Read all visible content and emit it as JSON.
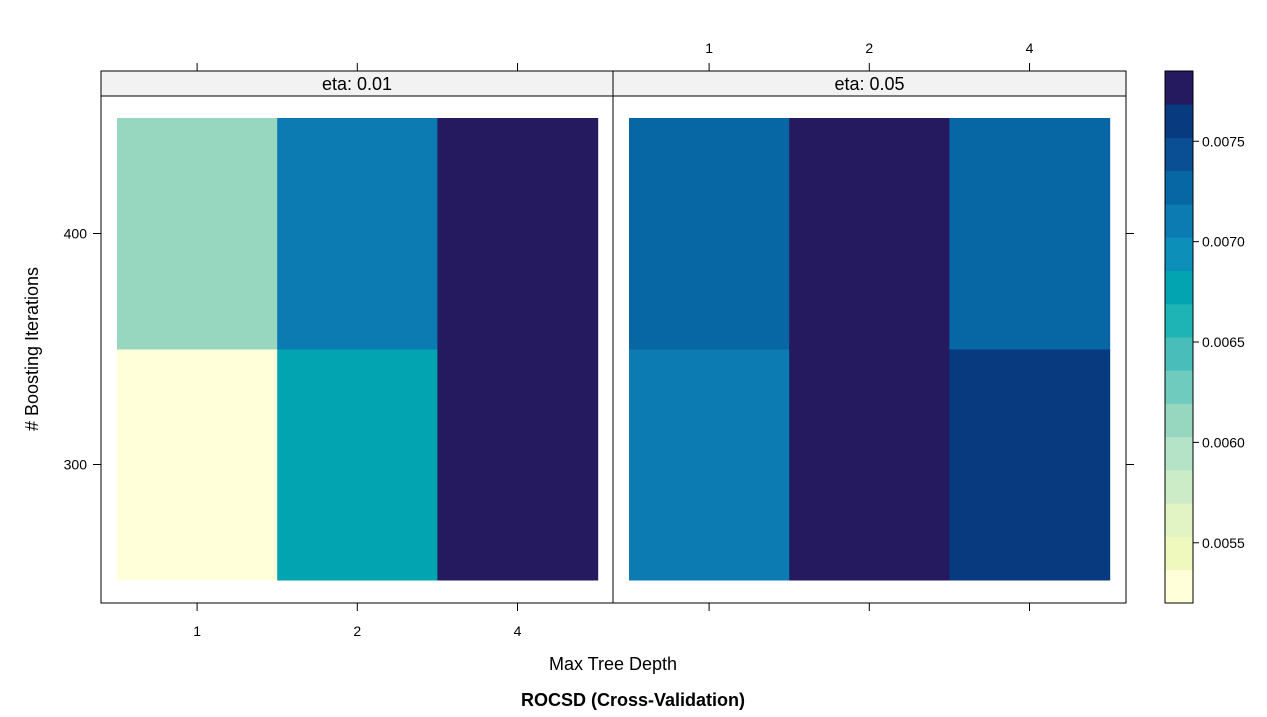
{
  "chart_data": {
    "type": "heatmap",
    "title": "ROCSD (Cross-Validation)",
    "xlabel": "Max Tree Depth",
    "ylabel": "# Boosting Iterations",
    "x_categories": [
      "1",
      "2",
      "4"
    ],
    "y_categories": [
      "300",
      "400"
    ],
    "panels": [
      {
        "label": "eta: 0.01",
        "cells": [
          {
            "x": "1",
            "y": "300",
            "value": 0.00525
          },
          {
            "x": "2",
            "y": "300",
            "value": 0.00685
          },
          {
            "x": "4",
            "y": "300",
            "value": 0.00785
          },
          {
            "x": "1",
            "y": "400",
            "value": 0.00605
          },
          {
            "x": "2",
            "y": "400",
            "value": 0.00715
          },
          {
            "x": "4",
            "y": "400",
            "value": 0.0077
          }
        ]
      },
      {
        "label": "eta: 0.05",
        "cells": [
          {
            "x": "1",
            "y": "300",
            "value": 0.00715
          },
          {
            "x": "2",
            "y": "300",
            "value": 0.0077
          },
          {
            "x": "4",
            "y": "300",
            "value": 0.00755
          },
          {
            "x": "1",
            "y": "400",
            "value": 0.00735
          },
          {
            "x": "2",
            "y": "400",
            "value": 0.0077
          },
          {
            "x": "4",
            "y": "400",
            "value": 0.00735
          }
        ]
      }
    ],
    "colorbar": {
      "min": 0.0052,
      "max": 0.00785,
      "ticks": [
        0.0055,
        0.006,
        0.0065,
        0.007,
        0.0075
      ],
      "tick_labels": [
        "0.0055",
        "0.0060",
        "0.0065",
        "0.0070",
        "0.0075"
      ],
      "colors": [
        "#ffffd9",
        "#eff9bd",
        "#e2f3c4",
        "#cbecc6",
        "#b4e3c7",
        "#97d7c0",
        "#6fcbbd",
        "#48bdb9",
        "#1eb3b5",
        "#02a4b2",
        "#0c8fb9",
        "#0b7bb1",
        "#0767a4",
        "#0a4f94",
        "#073a7e",
        "#251a5f"
      ]
    },
    "grid": false,
    "legend": "right colorbar"
  }
}
